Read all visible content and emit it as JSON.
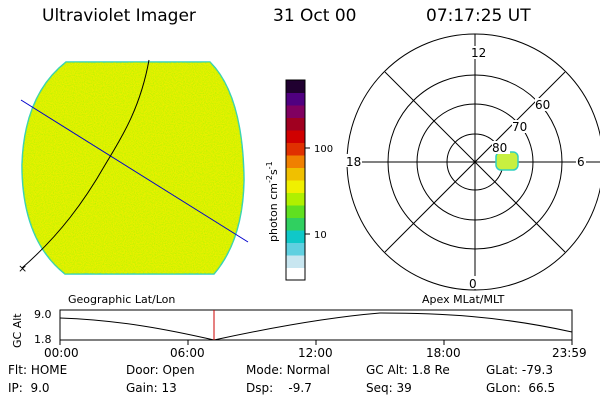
{
  "header": {
    "title": "Ultraviolet Imager",
    "date": "31 Oct 00",
    "time": "07:17:25 UT"
  },
  "colorbar": {
    "label": "photon cm",
    "label_exp1": "-2",
    "label_mid": "s",
    "label_exp2": "-1",
    "ticks": [
      "100",
      "10"
    ],
    "colors": [
      "#ffffff",
      "#c8e6f0",
      "#60d0e0",
      "#10c8c8",
      "#30d060",
      "#60e020",
      "#b0f000",
      "#f0f000",
      "#f0c000",
      "#f08000",
      "#e03000",
      "#d00000",
      "#a00020",
      "#800060",
      "#500080",
      "#200030"
    ]
  },
  "polar": {
    "clock_labels": {
      "top": "12",
      "left": "18",
      "right": "6",
      "bottom": "0"
    },
    "lat_labels": [
      "60",
      "70",
      "80"
    ]
  },
  "timeline": {
    "left_label": "Geographic Lat/Lon",
    "right_label": "Apex MLat/MLT",
    "axis_label": "GC Alt",
    "y_ticks": [
      "9.0",
      "1.8"
    ],
    "x_ticks": [
      "00:00",
      "06:00",
      "12:00",
      "18:00",
      "23:59"
    ]
  },
  "info": {
    "flt_label": "Flt:",
    "flt": "HOME",
    "ip_label": "IP:",
    "ip": "9.0",
    "door_label": "Door:",
    "door": "Open",
    "gain_label": "Gain:",
    "gain": "13",
    "mode_label": "Mode:",
    "mode": "Normal",
    "dsp_label": "Dsp:",
    "dsp": "-9.7",
    "gcalt_label": "GC Alt:",
    "gcalt": "1.8 Re",
    "seq_label": "Seq:",
    "seq": "39",
    "glat_label": "GLat:",
    "glat": "-79.3",
    "glon_label": "GLon:",
    "glon": "66.5"
  },
  "colors": {
    "disk_fill": "#ecf000",
    "disk_edge": "#30d0c0",
    "grid_line": "#0000cc",
    "marker": "#cc0000",
    "spot": "#c8f040"
  }
}
